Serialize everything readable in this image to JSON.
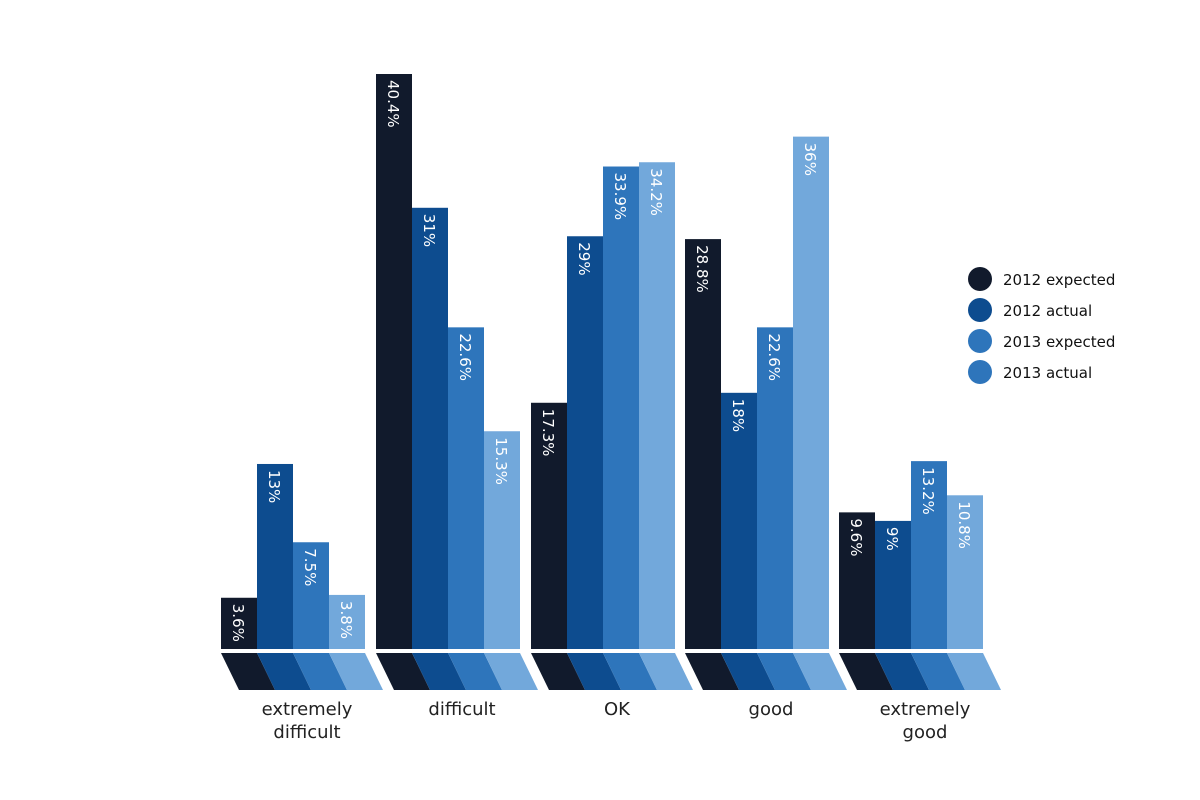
{
  "chart_data": {
    "type": "bar",
    "categories": [
      "extremely difficult",
      "difficult",
      "OK",
      "good",
      "extremely good"
    ],
    "category_lines": [
      [
        "extremely",
        "difficult"
      ],
      [
        "difficult"
      ],
      [
        "OK"
      ],
      [
        "good"
      ],
      [
        "extremely",
        "good"
      ]
    ],
    "series": [
      {
        "name": "2012 expected",
        "values": [
          3.6,
          40.4,
          17.3,
          28.8,
          9.6
        ],
        "labels": [
          "3.6%",
          "40.4%",
          "17.3%",
          "28.8%",
          "9.6%"
        ],
        "color": "#111a2c"
      },
      {
        "name": "2012 actual",
        "values": [
          13,
          31,
          29,
          18,
          9
        ],
        "labels": [
          "13%",
          "31%",
          "29%",
          "18%",
          "9%"
        ],
        "color": "#0d4c8f"
      },
      {
        "name": "2013 expected",
        "values": [
          7.5,
          22.6,
          33.9,
          22.6,
          13.2
        ],
        "labels": [
          "7.5%",
          "22.6%",
          "33.9%",
          "22.6%",
          "13.2%"
        ],
        "color": "#2e75bb"
      },
      {
        "name": "2013 actual",
        "values": [
          3.8,
          15.3,
          34.2,
          36,
          10.8
        ],
        "labels": [
          "3.8%",
          "15.3%",
          "34.2%",
          "36%",
          "10.8%"
        ],
        "color": "#72a8db"
      }
    ],
    "legend_colors": [
      "#111a2c",
      "#0d4c8f",
      "#2e75bb",
      "#2e75bb"
    ],
    "title": "",
    "xlabel": "",
    "ylabel": "",
    "ylim": [
      0,
      40.4
    ],
    "grid": false,
    "legend": "right"
  }
}
